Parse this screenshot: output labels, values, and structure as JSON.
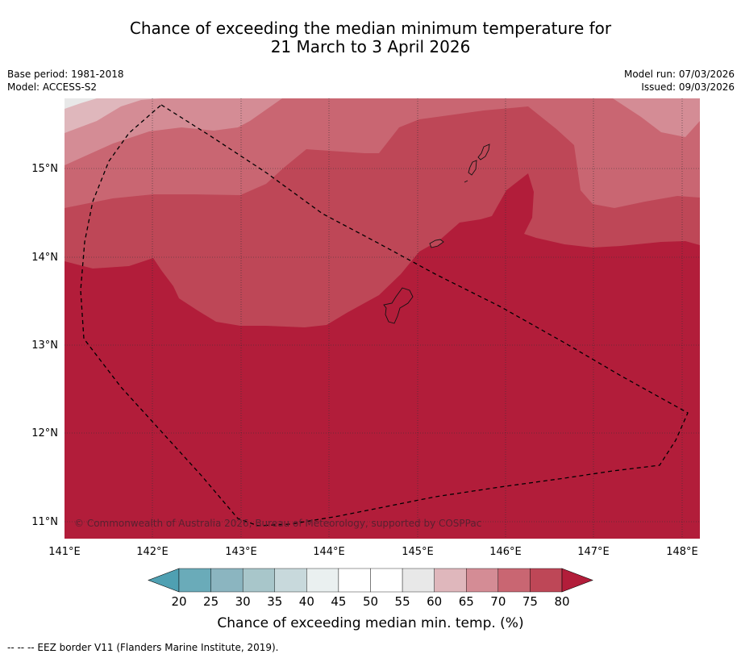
{
  "title": {
    "line1": "Chance of exceeding the median minimum temperature for",
    "line2": "21 March to 3 April 2026"
  },
  "meta": {
    "base_period": "Base period: 1981-2018",
    "model": "Model: ACCESS-S2",
    "model_run": "Model run: 07/03/2026",
    "issued": "Issued: 09/03/2026"
  },
  "map": {
    "lon_ticks": [
      "141°E",
      "142°E",
      "143°E",
      "144°E",
      "145°E",
      "146°E",
      "147°E",
      "148°E"
    ],
    "lat_ticks": [
      "15°N",
      "14°N",
      "13°N",
      "12°N",
      "11°N"
    ],
    "copyright": "© Commonwealth of Australia 2026, Bureau of Meteorology, supported by COSPPac",
    "colors": {
      "c_60_65": "#dfb7bc",
      "c_65_70": "#d48c95",
      "c_70_75": "#c96672",
      "c_75_80": "#be4757",
      "c_80_plus": "#b21d3a"
    }
  },
  "colorbar": {
    "ticks": [
      "20",
      "25",
      "30",
      "35",
      "40",
      "45",
      "50",
      "55",
      "60",
      "65",
      "70",
      "75",
      "80"
    ],
    "colors": [
      "#6aabb9",
      "#8bb5c0",
      "#a8c6ca",
      "#c8d9dc",
      "#eaf0f0",
      "#ffffff",
      "#ffffff",
      "#e8e8e8",
      "#dfb7bc",
      "#d48c95",
      "#c96672",
      "#be4757"
    ],
    "low_color": "#4fa0b2",
    "high_color": "#b21d3a",
    "label": "Chance of exceeding median min. temp. (%)"
  },
  "footer": {
    "legend_text": "--  --  -- EEZ border V11 (Flanders Marine Institute, 2019)."
  }
}
